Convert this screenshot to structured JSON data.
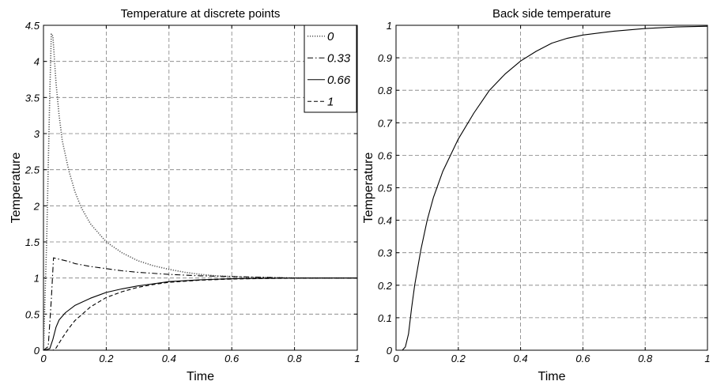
{
  "chart_data": [
    {
      "type": "line",
      "title": "Temperature at discrete points",
      "xlabel": "Time",
      "ylabel": "Temperature",
      "xlim": [
        0,
        1
      ],
      "ylim": [
        0,
        4.5
      ],
      "xticks": [
        "0",
        "0.2",
        "0.4",
        "0.6",
        "0.8",
        "1"
      ],
      "xtick_values": [
        0,
        0.2,
        0.4,
        0.6,
        0.8,
        1
      ],
      "yticks": [
        "0",
        "0.5",
        "1",
        "1.5",
        "2",
        "2.5",
        "3",
        "3.5",
        "4",
        "4.5"
      ],
      "ytick_values": [
        0,
        0.5,
        1,
        1.5,
        2,
        2.5,
        3,
        3.5,
        4,
        4.5
      ],
      "grid": true,
      "legend_position": "top-right",
      "series": [
        {
          "name": "0",
          "style": "dotted",
          "color": "#555555",
          "x": [
            0,
            0.01,
            0.02,
            0.025,
            0.03,
            0.04,
            0.05,
            0.06,
            0.08,
            0.1,
            0.12,
            0.15,
            0.2,
            0.25,
            0.3,
            0.35,
            0.4,
            0.45,
            0.5,
            0.55,
            0.6,
            0.65,
            0.7,
            0.8,
            0.9,
            1.0
          ],
          "y": [
            0,
            1.5,
            3.5,
            4.38,
            4.35,
            3.7,
            3.25,
            2.9,
            2.5,
            2.2,
            1.98,
            1.75,
            1.5,
            1.35,
            1.24,
            1.17,
            1.12,
            1.08,
            1.05,
            1.03,
            1.02,
            1.01,
            1.01,
            1.0,
            1.0,
            1.0
          ]
        },
        {
          "name": "0.33",
          "style": "dashdot",
          "color": "#000000",
          "x": [
            0,
            0.015,
            0.025,
            0.032,
            0.04,
            0.05,
            0.06,
            0.08,
            0.1,
            0.15,
            0.2,
            0.25,
            0.3,
            0.4,
            0.5,
            0.6,
            0.7,
            0.8,
            0.9,
            1.0
          ],
          "y": [
            0,
            0.05,
            0.7,
            1.28,
            1.27,
            1.26,
            1.25,
            1.23,
            1.2,
            1.16,
            1.13,
            1.1,
            1.08,
            1.05,
            1.03,
            1.02,
            1.01,
            1.0,
            1.0,
            1.0
          ]
        },
        {
          "name": "0.66",
          "style": "solid",
          "color": "#000000",
          "x": [
            0,
            0.02,
            0.03,
            0.04,
            0.05,
            0.07,
            0.1,
            0.15,
            0.2,
            0.25,
            0.3,
            0.35,
            0.4,
            0.5,
            0.6,
            0.7,
            0.8,
            0.9,
            1.0
          ],
          "y": [
            0,
            0.02,
            0.15,
            0.32,
            0.42,
            0.52,
            0.62,
            0.72,
            0.8,
            0.85,
            0.89,
            0.92,
            0.95,
            0.975,
            0.99,
            0.995,
            1.0,
            1.0,
            1.0
          ]
        },
        {
          "name": "1",
          "style": "dashed",
          "color": "#000000",
          "x": [
            0,
            0.03,
            0.04,
            0.05,
            0.06,
            0.08,
            0.1,
            0.15,
            0.2,
            0.25,
            0.3,
            0.35,
            0.4,
            0.5,
            0.6,
            0.7,
            0.8,
            0.9,
            1.0
          ],
          "y": [
            0,
            0.0,
            0.03,
            0.1,
            0.17,
            0.3,
            0.41,
            0.6,
            0.73,
            0.81,
            0.87,
            0.91,
            0.94,
            0.97,
            0.985,
            0.993,
            0.997,
            1.0,
            1.0
          ]
        }
      ]
    },
    {
      "type": "line",
      "title": "Back side temperature",
      "xlabel": "Time",
      "ylabel": "Temperature",
      "xlim": [
        0,
        1
      ],
      "ylim": [
        0,
        1
      ],
      "xticks": [
        "0",
        "0.2",
        "0.4",
        "0.6",
        "0.8",
        "1"
      ],
      "xtick_values": [
        0,
        0.2,
        0.4,
        0.6,
        0.8,
        1
      ],
      "yticks": [
        "0",
        "0.1",
        "0.2",
        "0.3",
        "0.4",
        "0.5",
        "0.6",
        "0.7",
        "0.8",
        "0.9",
        "1"
      ],
      "ytick_values": [
        0,
        0.1,
        0.2,
        0.3,
        0.4,
        0.5,
        0.6,
        0.7,
        0.8,
        0.9,
        1
      ],
      "grid": true,
      "series": [
        {
          "style": "solid",
          "color": "#000000",
          "x": [
            0,
            0.02,
            0.03,
            0.04,
            0.05,
            0.06,
            0.08,
            0.1,
            0.12,
            0.15,
            0.2,
            0.25,
            0.3,
            0.35,
            0.4,
            0.45,
            0.5,
            0.55,
            0.6,
            0.7,
            0.8,
            0.9,
            1.0
          ],
          "y": [
            0,
            0.0,
            0.01,
            0.05,
            0.13,
            0.2,
            0.31,
            0.4,
            0.47,
            0.55,
            0.65,
            0.73,
            0.8,
            0.85,
            0.89,
            0.92,
            0.945,
            0.96,
            0.97,
            0.982,
            0.99,
            0.995,
            0.997
          ]
        }
      ]
    }
  ]
}
